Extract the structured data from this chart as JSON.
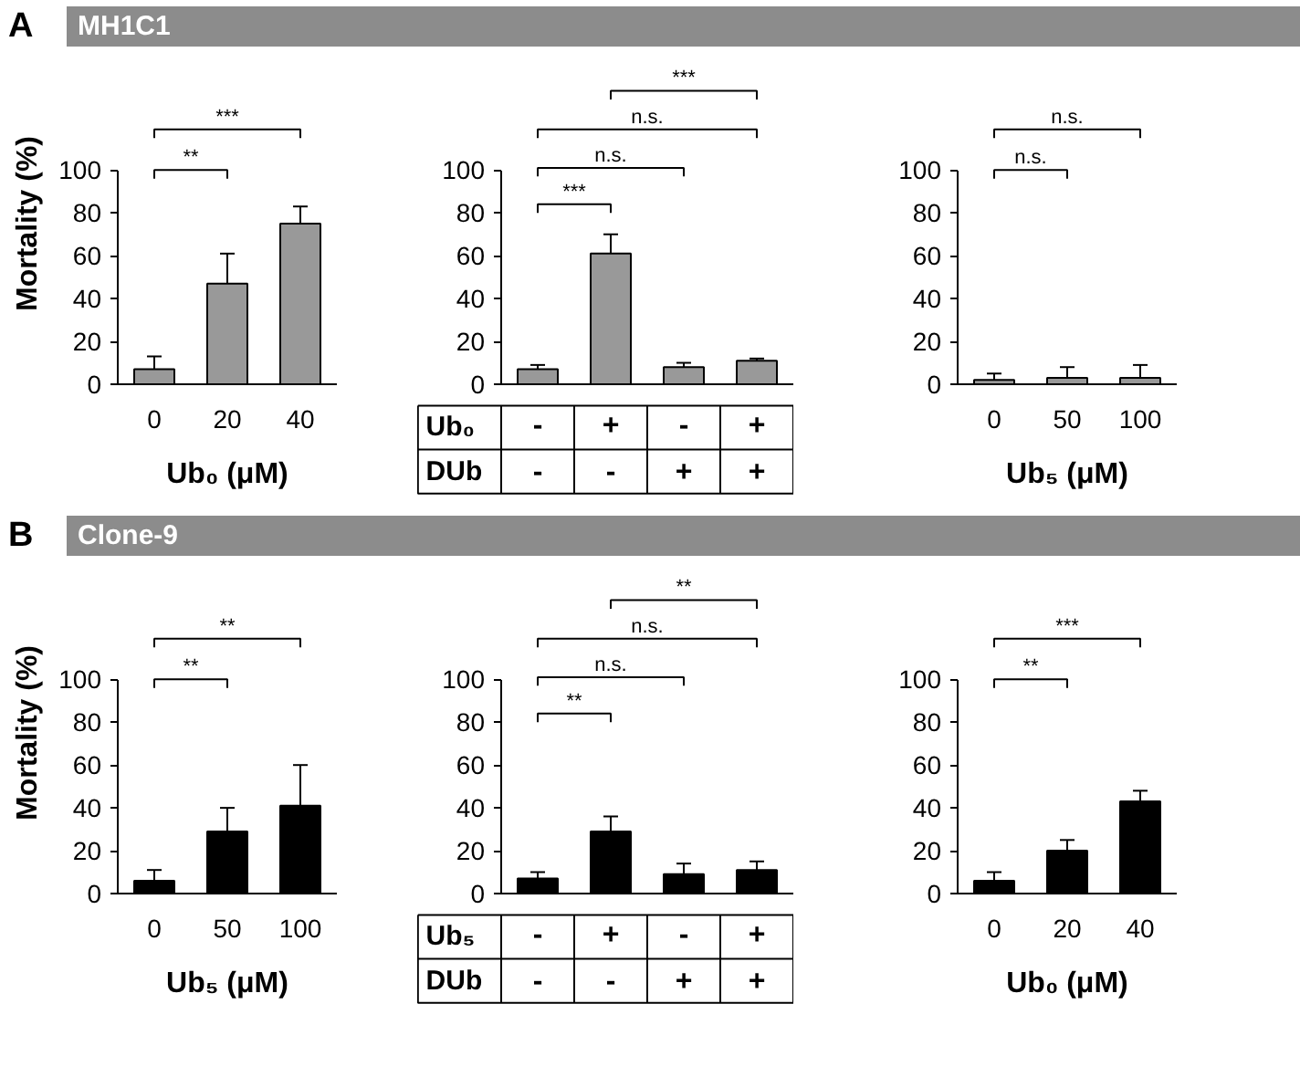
{
  "chart_data": [
    {
      "type": "other",
      "title": "MH1C1",
      "annotations": [
        "A"
      ]
    },
    {
      "type": "bar",
      "categories": [
        "0",
        "20",
        "40"
      ],
      "values": [
        7,
        47,
        75
      ],
      "errors": [
        [
          7,
          13
        ],
        [
          47,
          61
        ],
        [
          75,
          83
        ]
      ],
      "colors": [
        "#999999",
        "#999999",
        "#999999"
      ],
      "ylabel": "Mortality (%)",
      "xlabel": "Ub₀ (μM)",
      "ylim": [
        0,
        100
      ],
      "yticks": [
        0,
        20,
        40,
        60,
        80,
        100
      ],
      "annotations": [
        "**",
        "***"
      ]
    },
    {
      "type": "bar",
      "categories": [
        "-\n-",
        "+\n-",
        "-\n+",
        "+\n+"
      ],
      "values": [
        7,
        61,
        8,
        11
      ],
      "errors": [
        [
          7,
          9
        ],
        [
          61,
          70
        ],
        [
          8,
          10
        ],
        [
          11,
          12
        ]
      ],
      "colors": [
        "#999999",
        "#999999",
        "#999999",
        "#999999"
      ],
      "ylim": [
        0,
        100
      ],
      "yticks": [
        0,
        20,
        40,
        60,
        80,
        100
      ],
      "annotations": [
        "Ub₀",
        "DUb",
        "***",
        "n.s.",
        "n.s.",
        "***"
      ]
    },
    {
      "type": "bar",
      "categories": [
        "0",
        "50",
        "100"
      ],
      "values": [
        2,
        3,
        3
      ],
      "errors": [
        [
          2,
          5
        ],
        [
          3,
          8
        ],
        [
          3,
          9
        ]
      ],
      "colors": [
        "#999999",
        "#999999",
        "#999999"
      ],
      "xlabel": "Ub₅ (μM)",
      "ylim": [
        0,
        100
      ],
      "yticks": [
        0,
        20,
        40,
        60,
        80,
        100
      ],
      "annotations": [
        "n.s.",
        "n.s."
      ]
    },
    {
      "type": "other",
      "title": "Clone-9",
      "annotations": [
        "B"
      ]
    },
    {
      "type": "bar",
      "categories": [
        "0",
        "50",
        "100"
      ],
      "values": [
        6,
        29,
        41
      ],
      "errors": [
        [
          6,
          11
        ],
        [
          29,
          40
        ],
        [
          41,
          60
        ]
      ],
      "colors": [
        "#000000",
        "#000000",
        "#000000"
      ],
      "ylabel": "Mortality (%)",
      "xlabel": "Ub₅ (μM)",
      "ylim": [
        0,
        100
      ],
      "yticks": [
        0,
        20,
        40,
        60,
        80,
        100
      ],
      "annotations": [
        "**",
        "**"
      ]
    },
    {
      "type": "bar",
      "categories": [
        "-\n-",
        "+\n-",
        "-\n+",
        "+\n+"
      ],
      "values": [
        7,
        29,
        9,
        11
      ],
      "errors": [
        [
          7,
          10
        ],
        [
          29,
          36
        ],
        [
          9,
          14
        ],
        [
          11,
          15
        ]
      ],
      "colors": [
        "#000000",
        "#000000",
        "#000000",
        "#000000"
      ],
      "ylim": [
        0,
        100
      ],
      "yticks": [
        0,
        20,
        40,
        60,
        80,
        100
      ],
      "annotations": [
        "Ub₅",
        "DUb",
        "**",
        "n.s.",
        "n.s.",
        "**"
      ]
    },
    {
      "type": "bar",
      "categories": [
        "0",
        "20",
        "40"
      ],
      "values": [
        6,
        20,
        43
      ],
      "errors": [
        [
          6,
          10
        ],
        [
          20,
          25
        ],
        [
          43,
          48
        ]
      ],
      "colors": [
        "#000000",
        "#000000",
        "#000000"
      ],
      "xlabel": "Ub₀ (μM)",
      "ylim": [
        0,
        100
      ],
      "yticks": [
        0,
        20,
        40,
        60,
        80,
        100
      ],
      "annotations": [
        "**",
        "***"
      ]
    }
  ]
}
